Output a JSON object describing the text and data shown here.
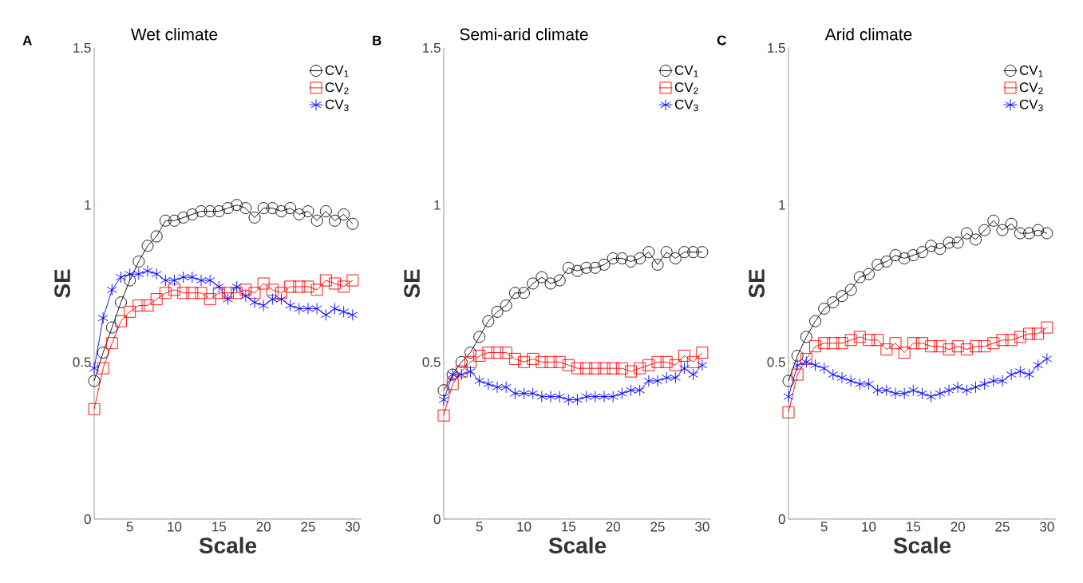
{
  "chart_data": [
    {
      "type": "line",
      "title": "Wet climate",
      "xlabel": "Scale",
      "ylabel": "SE",
      "annotations": [
        "A"
      ],
      "legend": "top right",
      "line_style": "solid",
      "x": [
        1,
        2,
        3,
        4,
        5,
        6,
        7,
        8,
        9,
        10,
        11,
        12,
        13,
        14,
        15,
        16,
        17,
        18,
        19,
        20,
        21,
        22,
        23,
        24,
        25,
        26,
        27,
        28,
        29,
        30
      ],
      "xlim": [
        1,
        31
      ],
      "xticks": [
        5,
        10,
        15,
        20,
        25,
        30
      ],
      "ylim": [
        0,
        1.5
      ],
      "yticks": [
        0,
        0.5,
        1,
        1.5
      ],
      "series": [
        {
          "name": "CV$_{1}$",
          "color": "#000000",
          "marker": "circle",
          "values": [
            0.44,
            0.53,
            0.61,
            0.69,
            0.76,
            0.82,
            0.87,
            0.9,
            0.95,
            0.95,
            0.96,
            0.97,
            0.98,
            0.98,
            0.98,
            0.99,
            1.0,
            0.99,
            0.96,
            0.99,
            0.99,
            0.98,
            0.99,
            0.97,
            0.98,
            0.95,
            0.98,
            0.95,
            0.97,
            0.94
          ]
        },
        {
          "name": "CV$_{2}$",
          "color": "#ff0000",
          "marker": "square",
          "values": [
            0.35,
            0.48,
            0.56,
            0.63,
            0.66,
            0.68,
            0.68,
            0.7,
            0.72,
            0.73,
            0.72,
            0.72,
            0.72,
            0.7,
            0.72,
            0.72,
            0.72,
            0.73,
            0.72,
            0.75,
            0.73,
            0.72,
            0.74,
            0.74,
            0.74,
            0.73,
            0.76,
            0.75,
            0.74,
            0.76
          ]
        },
        {
          "name": "CV$_{3}$",
          "color": "#0000ff",
          "marker": "cross",
          "values": [
            0.48,
            0.64,
            0.73,
            0.77,
            0.78,
            0.78,
            0.79,
            0.78,
            0.76,
            0.76,
            0.77,
            0.77,
            0.76,
            0.76,
            0.74,
            0.7,
            0.74,
            0.71,
            0.69,
            0.68,
            0.7,
            0.7,
            0.68,
            0.67,
            0.67,
            0.67,
            0.65,
            0.67,
            0.66,
            0.65
          ]
        }
      ]
    },
    {
      "type": "line",
      "title": "Semi-arid climate",
      "xlabel": "Scale",
      "ylabel": "SE",
      "annotations": [
        "B"
      ],
      "legend": "top right",
      "line_style": "solid",
      "x": [
        1,
        2,
        3,
        4,
        5,
        6,
        7,
        8,
        9,
        10,
        11,
        12,
        13,
        14,
        15,
        16,
        17,
        18,
        19,
        20,
        21,
        22,
        23,
        24,
        25,
        26,
        27,
        28,
        29,
        30
      ],
      "xlim": [
        1,
        31
      ],
      "xticks": [
        5,
        10,
        15,
        20,
        25,
        30
      ],
      "ylim": [
        0,
        1.5
      ],
      "yticks": [
        0,
        0.5,
        1,
        1.5
      ],
      "series": [
        {
          "name": "CV$_{1}$",
          "color": "#000000",
          "marker": "circle",
          "values": [
            0.41,
            0.46,
            0.5,
            0.53,
            0.58,
            0.63,
            0.66,
            0.68,
            0.72,
            0.72,
            0.75,
            0.77,
            0.75,
            0.76,
            0.8,
            0.79,
            0.8,
            0.8,
            0.81,
            0.83,
            0.83,
            0.82,
            0.83,
            0.85,
            0.81,
            0.85,
            0.83,
            0.85,
            0.85,
            0.85
          ]
        },
        {
          "name": "CV$_{2}$",
          "color": "#ff0000",
          "marker": "square",
          "values": [
            0.33,
            0.43,
            0.47,
            0.5,
            0.52,
            0.53,
            0.53,
            0.53,
            0.51,
            0.5,
            0.51,
            0.5,
            0.5,
            0.5,
            0.49,
            0.48,
            0.48,
            0.48,
            0.48,
            0.48,
            0.48,
            0.47,
            0.48,
            0.49,
            0.5,
            0.5,
            0.49,
            0.52,
            0.5,
            0.53
          ]
        },
        {
          "name": "CV$_{3}$",
          "color": "#0000ff",
          "marker": "cross",
          "values": [
            0.38,
            0.46,
            0.46,
            0.47,
            0.44,
            0.43,
            0.42,
            0.42,
            0.4,
            0.4,
            0.4,
            0.39,
            0.39,
            0.39,
            0.38,
            0.38,
            0.39,
            0.39,
            0.39,
            0.39,
            0.4,
            0.41,
            0.41,
            0.44,
            0.44,
            0.45,
            0.45,
            0.48,
            0.46,
            0.49
          ]
        }
      ]
    },
    {
      "type": "line",
      "title": "Arid climate",
      "xlabel": "Scale",
      "ylabel": "SE",
      "annotations": [
        "C"
      ],
      "legend": "top right",
      "line_style": "solid",
      "x": [
        1,
        2,
        3,
        4,
        5,
        6,
        7,
        8,
        9,
        10,
        11,
        12,
        13,
        14,
        15,
        16,
        17,
        18,
        19,
        20,
        21,
        22,
        23,
        24,
        25,
        26,
        27,
        28,
        29,
        30
      ],
      "xlim": [
        1,
        31
      ],
      "xticks": [
        5,
        10,
        15,
        20,
        25,
        30
      ],
      "ylim": [
        0,
        1.5
      ],
      "yticks": [
        0,
        0.5,
        1,
        1.5
      ],
      "series": [
        {
          "name": "CV$_{1}$",
          "color": "#000000",
          "marker": "circle",
          "values": [
            0.44,
            0.52,
            0.58,
            0.63,
            0.67,
            0.69,
            0.71,
            0.73,
            0.77,
            0.78,
            0.81,
            0.82,
            0.84,
            0.83,
            0.84,
            0.85,
            0.87,
            0.86,
            0.88,
            0.88,
            0.91,
            0.89,
            0.92,
            0.95,
            0.92,
            0.94,
            0.91,
            0.91,
            0.92,
            0.91
          ]
        },
        {
          "name": "CV$_{2}$",
          "color": "#ff0000",
          "marker": "square",
          "values": [
            0.34,
            0.46,
            0.51,
            0.55,
            0.56,
            0.56,
            0.56,
            0.57,
            0.58,
            0.57,
            0.57,
            0.54,
            0.56,
            0.53,
            0.56,
            0.56,
            0.55,
            0.55,
            0.54,
            0.55,
            0.54,
            0.55,
            0.55,
            0.56,
            0.57,
            0.57,
            0.58,
            0.59,
            0.59,
            0.61
          ]
        },
        {
          "name": "CV$_{3}$",
          "color": "#0000ff",
          "marker": "cross",
          "values": [
            0.39,
            0.49,
            0.5,
            0.49,
            0.48,
            0.46,
            0.45,
            0.44,
            0.43,
            0.43,
            0.41,
            0.41,
            0.4,
            0.4,
            0.41,
            0.4,
            0.39,
            0.4,
            0.41,
            0.42,
            0.41,
            0.42,
            0.43,
            0.44,
            0.44,
            0.46,
            0.47,
            0.46,
            0.49,
            0.51
          ]
        }
      ]
    }
  ]
}
